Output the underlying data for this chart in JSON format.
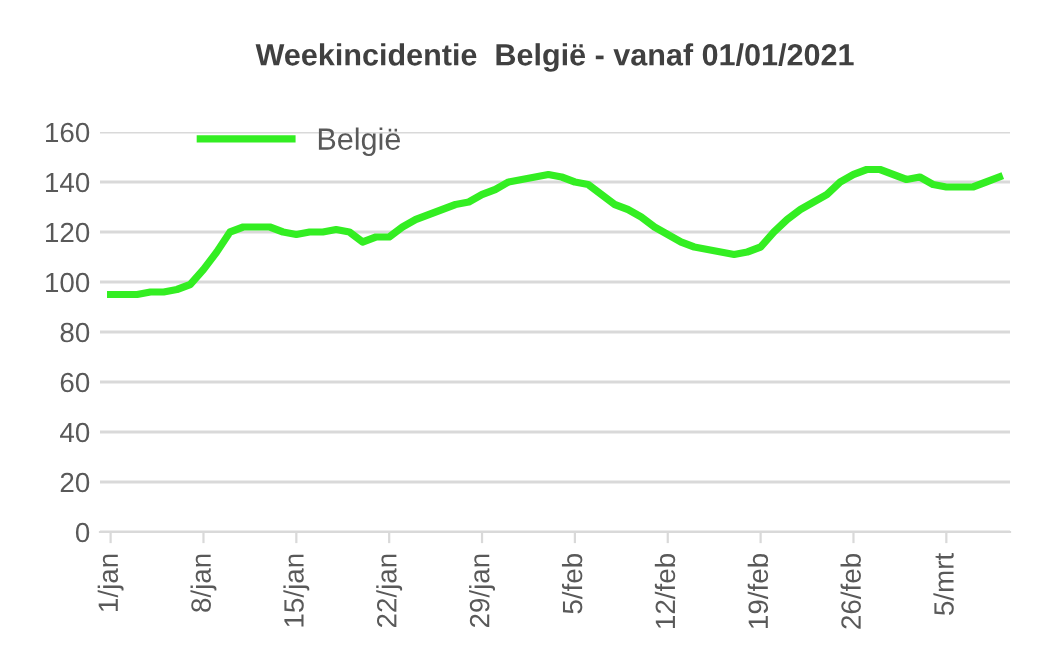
{
  "chart_data": {
    "type": "line",
    "title": "Weekincidentie  België - vanaf 01/01/2021",
    "categories": [
      "1/jan",
      null,
      null,
      null,
      null,
      null,
      null,
      "8/jan",
      null,
      null,
      null,
      null,
      null,
      null,
      "15/jan",
      null,
      null,
      null,
      null,
      null,
      null,
      "22/jan",
      null,
      null,
      null,
      null,
      null,
      null,
      "29/jan",
      null,
      null,
      null,
      null,
      null,
      null,
      "5/feb",
      null,
      null,
      null,
      null,
      null,
      null,
      "12/feb",
      null,
      null,
      null,
      null,
      null,
      null,
      "19/feb",
      null,
      null,
      null,
      null,
      null,
      null,
      "26/feb",
      null,
      null,
      null,
      null,
      null,
      null,
      "5/mrt",
      null,
      null,
      null,
      null
    ],
    "series": [
      {
        "name": "België",
        "color": "#33ee22",
        "values": [
          95,
          95,
          95,
          96,
          96,
          97,
          99,
          105,
          112,
          120,
          122,
          122,
          122,
          120,
          119,
          120,
          120,
          121,
          120,
          116,
          118,
          118,
          122,
          125,
          127,
          129,
          131,
          132,
          135,
          137,
          140,
          141,
          142,
          143,
          142,
          140,
          139,
          135,
          131,
          129,
          126,
          122,
          119,
          116,
          114,
          113,
          112,
          111,
          112,
          114,
          120,
          125,
          129,
          132,
          135,
          140,
          143,
          145,
          145,
          143,
          141,
          142,
          139,
          138,
          138,
          138,
          140,
          142
        ]
      }
    ],
    "ylim": [
      0,
      160
    ],
    "yticks": [
      0,
      20,
      40,
      60,
      80,
      100,
      120,
      140,
      160
    ],
    "grid": "y",
    "legend": "top left",
    "marker": "none",
    "line_style": "solid"
  }
}
